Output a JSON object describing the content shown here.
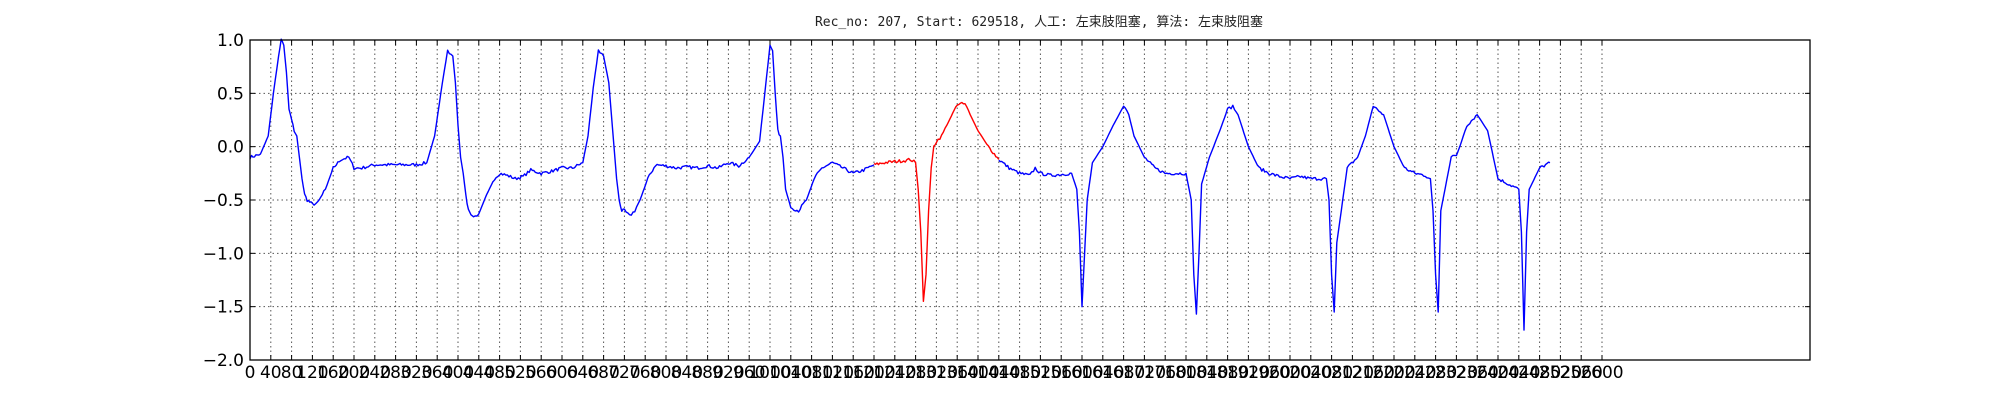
{
  "chart_data": {
    "type": "line",
    "title": "Rec_no: 207, Start: 629518, 人工: 左束肢阻塞, 算法: 左束肢阻塞",
    "xlabel": "",
    "ylabel": "",
    "xlim": [
      0,
      3000
    ],
    "ylim": [
      -2.0,
      1.0
    ],
    "y_ticks": [
      1.0,
      0.5,
      0.0,
      -0.5,
      -1.0,
      -1.5,
      -2.0
    ],
    "y_tick_labels": [
      "1.0",
      "0.5",
      "0.0",
      "−0.5",
      "−1.0",
      "−1.5",
      "−2.0"
    ],
    "x_ticks": [
      0,
      40,
      80,
      120,
      160,
      200,
      240,
      280,
      320,
      360,
      400,
      440,
      480,
      520,
      560,
      600,
      640,
      680,
      720,
      760,
      800,
      840,
      880,
      920,
      960,
      1000,
      1040,
      1080,
      1120,
      1160,
      1200,
      1240,
      1280,
      1320,
      1360,
      1400,
      1440,
      1480,
      1520,
      1560,
      1600,
      1640,
      1680,
      1720,
      1760,
      1800,
      1840,
      1880,
      1920,
      1960,
      2000,
      2040,
      2080,
      2120,
      2160,
      2200,
      2240,
      2280,
      2320,
      2360,
      2400,
      2440,
      2480,
      2520,
      2560,
      2600
    ],
    "x_tick_labels": [
      "0",
      "40",
      "80",
      "120",
      "160",
      "200",
      "240",
      "280",
      "320",
      "360",
      "400",
      "440",
      "480",
      "520",
      "560",
      "600",
      "640",
      "680",
      "720",
      "760",
      "800",
      "840",
      "880",
      "920",
      "960",
      "1000",
      "1040",
      "1080",
      "1120",
      "1160",
      "1200",
      "1240",
      "1280",
      "1320",
      "1360",
      "1400",
      "1440",
      "1480",
      "1520",
      "1560",
      "1600",
      "1640",
      "1680",
      "1720",
      "1760",
      "1800",
      "1840",
      "1880",
      "1920",
      "1960",
      "2000",
      "2040",
      "2080",
      "2120",
      "2160",
      "2200",
      "2240",
      "2280",
      "2320",
      "2360",
      "2400",
      "2440",
      "2480",
      "2520",
      "2560",
      "2600"
    ],
    "grid": true,
    "series": [
      {
        "color": "#0000ff",
        "x": [
          0,
          20,
          35,
          45,
          55,
          60,
          65,
          70,
          75,
          80,
          85,
          90,
          95,
          100,
          105,
          110,
          115,
          120,
          130,
          145,
          160,
          175,
          190,
          200,
          215,
          240,
          260,
          280,
          300,
          320,
          340,
          355,
          370,
          380,
          390,
          395,
          400,
          405,
          410,
          415,
          420,
          425,
          430,
          440,
          455,
          470,
          480,
          495,
          510,
          525,
          540,
          560,
          580,
          600,
          620,
          640,
          650,
          660,
          670,
          680,
          690,
          695,
          700,
          705,
          710,
          715,
          720,
          730,
          740,
          750,
          765,
          780,
          800,
          820,
          840,
          860,
          880,
          900,
          920,
          940,
          960,
          980,
          990,
          1000,
          1005,
          1010,
          1015,
          1020,
          1025,
          1030,
          1040,
          1055,
          1070,
          1085,
          1100,
          1120,
          1140,
          1160,
          1180,
          1200
        ],
        "y": [
          -0.1,
          -0.07,
          0.1,
          0.5,
          0.85,
          1.0,
          0.95,
          0.7,
          0.35,
          0.25,
          0.15,
          0.1,
          -0.1,
          -0.3,
          -0.45,
          -0.5,
          -0.52,
          -0.54,
          -0.53,
          -0.4,
          -0.2,
          -0.12,
          -0.1,
          -0.2,
          -0.2,
          -0.17,
          -0.17,
          -0.17,
          -0.17,
          -0.17,
          -0.15,
          0.1,
          0.6,
          0.9,
          0.85,
          0.6,
          0.2,
          -0.1,
          -0.25,
          -0.45,
          -0.6,
          -0.65,
          -0.67,
          -0.63,
          -0.45,
          -0.3,
          -0.25,
          -0.27,
          -0.3,
          -0.28,
          -0.22,
          -0.25,
          -0.23,
          -0.2,
          -0.2,
          -0.15,
          0.1,
          0.55,
          0.9,
          0.85,
          0.6,
          0.3,
          0.0,
          -0.3,
          -0.5,
          -0.6,
          -0.6,
          -0.65,
          -0.6,
          -0.5,
          -0.3,
          -0.17,
          -0.18,
          -0.2,
          -0.19,
          -0.2,
          -0.18,
          -0.2,
          -0.15,
          -0.18,
          -0.1,
          0.05,
          0.5,
          0.95,
          0.9,
          0.5,
          0.15,
          0.1,
          -0.1,
          -0.4,
          -0.57,
          -0.6,
          -0.5,
          -0.3,
          -0.2,
          -0.15,
          -0.2,
          -0.25,
          -0.22,
          -0.17
        ]
      },
      {
        "color": "#ff0000",
        "x": [
          1200,
          1220,
          1240,
          1260,
          1270,
          1280,
          1285,
          1290,
          1295,
          1300,
          1305,
          1310,
          1315,
          1320,
          1330,
          1340,
          1360,
          1375,
          1385,
          1400,
          1420,
          1440
        ],
        "y": [
          -0.17,
          -0.15,
          -0.14,
          -0.13,
          -0.12,
          -0.15,
          -0.4,
          -0.8,
          -1.45,
          -1.2,
          -0.6,
          -0.2,
          0.0,
          0.05,
          0.1,
          0.2,
          0.4,
          0.4,
          0.3,
          0.15,
          0.0,
          -0.12
        ]
      },
      {
        "color": "#0000ff",
        "x": [
          1440,
          1460,
          1480,
          1500,
          1510,
          1520,
          1540,
          1560,
          1580,
          1590,
          1595,
          1600,
          1605,
          1610,
          1620,
          1640,
          1660,
          1680,
          1690,
          1700,
          1720,
          1740,
          1760,
          1780,
          1800,
          1810,
          1815,
          1820,
          1825,
          1830,
          1845,
          1865,
          1880,
          1890,
          1900,
          1920,
          1940,
          1960,
          1980,
          2000,
          2020,
          2040,
          2060,
          2070,
          2075,
          2080,
          2085,
          2090,
          2110,
          2130,
          2145,
          2160,
          2180,
          2200,
          2220,
          2240,
          2260,
          2270,
          2275,
          2280,
          2285,
          2290,
          2310,
          2320,
          2330,
          2340,
          2360,
          2380,
          2400,
          2420,
          2440,
          2445,
          2450,
          2455,
          2460,
          2480,
          2500
        ],
        "y": [
          -0.12,
          -0.2,
          -0.25,
          -0.27,
          -0.2,
          -0.25,
          -0.27,
          -0.26,
          -0.25,
          -0.4,
          -0.8,
          -1.5,
          -1.0,
          -0.5,
          -0.15,
          0.0,
          0.2,
          0.38,
          0.3,
          0.1,
          -0.1,
          -0.2,
          -0.25,
          -0.25,
          -0.25,
          -0.5,
          -1.2,
          -1.57,
          -1.0,
          -0.35,
          -0.1,
          0.15,
          0.35,
          0.38,
          0.3,
          0.0,
          -0.2,
          -0.25,
          -0.28,
          -0.3,
          -0.28,
          -0.3,
          -0.3,
          -0.3,
          -0.5,
          -1.2,
          -1.55,
          -0.9,
          -0.2,
          -0.1,
          0.1,
          0.38,
          0.3,
          0.0,
          -0.2,
          -0.25,
          -0.27,
          -0.3,
          -0.6,
          -1.2,
          -1.55,
          -0.6,
          -0.1,
          -0.08,
          0.05,
          0.2,
          0.3,
          0.15,
          -0.3,
          -0.35,
          -0.4,
          -0.8,
          -1.72,
          -0.8,
          -0.4,
          -0.2,
          -0.15
        ]
      }
    ]
  }
}
